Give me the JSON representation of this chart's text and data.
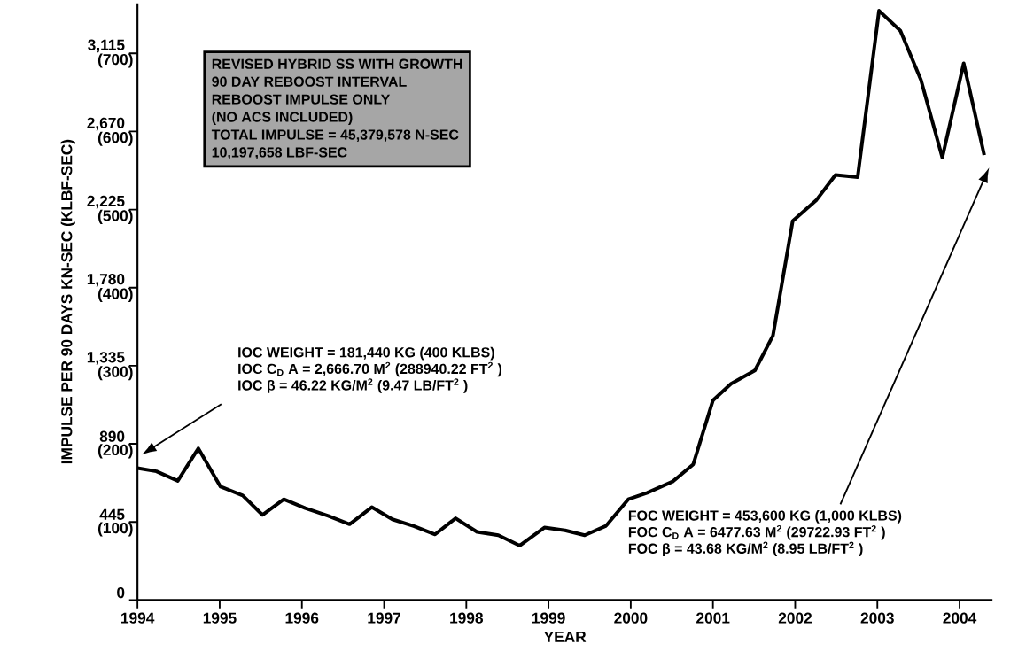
{
  "chart_data": {
    "type": "line",
    "xlabel": "YEAR",
    "ylabel": "IMPULSE PER 90 DAYS KN-SEC (KLBF-SEC)",
    "color": "#000000",
    "line_style": "solid",
    "x": [
      1994.0,
      1994.23,
      1994.49,
      1994.74,
      1995.01,
      1995.28,
      1995.52,
      1995.78,
      1996.04,
      1996.32,
      1996.58,
      1996.85,
      1997.1,
      1997.36,
      1997.62,
      1997.87,
      1998.13,
      1998.39,
      1998.65,
      1998.95,
      1999.2,
      1999.44,
      1999.7,
      1999.97,
      2000.2,
      2000.51,
      2000.76,
      2001.0,
      2001.22,
      2001.51,
      2001.73,
      2001.97,
      2002.26,
      2002.49,
      2002.76,
      2003.02,
      2003.28,
      2003.53,
      2003.79,
      2004.05,
      2004.3
    ],
    "values": [
      751,
      733,
      679,
      864,
      646,
      596,
      485,
      574,
      524,
      480,
      432,
      529,
      460,
      421,
      374,
      466,
      388,
      369,
      310,
      413,
      397,
      369,
      423,
      574,
      611,
      675,
      773,
      1138,
      1232,
      1308,
      1507,
      2160,
      2280,
      2422,
      2410,
      3358,
      3244,
      2964,
      2521,
      3058,
      2535
    ],
    "xlim": [
      1994,
      2004.4
    ],
    "ylim": [
      0,
      3400
    ],
    "xticks": [
      1994,
      1995,
      1996,
      1997,
      1998,
      1999,
      2000,
      2001,
      2002,
      2003,
      2004
    ],
    "yticks": [
      0,
      445,
      890,
      {
        "value": 1335,
        "label": "1,335"
      },
      {
        "value": 1780,
        "label": "1,780"
      },
      {
        "value": 2225,
        "label": "2,225"
      },
      {
        "value": 2670,
        "label": "2,670"
      },
      {
        "value": 3115,
        "label": "3,115"
      }
    ],
    "y2lim": [
      0,
      764.04
    ],
    "y2ticks": [
      {
        "value": 100,
        "label": "(100)"
      },
      {
        "value": 200,
        "label": "(200)"
      },
      {
        "value": 300,
        "label": "(300)"
      },
      {
        "value": 400,
        "label": "(400)"
      },
      {
        "value": 500,
        "label": "(500)"
      },
      {
        "value": 600,
        "label": "(600)"
      },
      {
        "value": 700,
        "label": "(700)"
      }
    ],
    "annotations": [
      "REVISED HYBRID SS WITH GROWTH",
      "90 DAY REBOOST INTERVAL",
      "REBOOST IMPULSE ONLY",
      "(NO ACS INCLUDED)",
      "TOTAL IMPULSE = 45,379,578 N-SEC",
      "10,197,658 LBF-SEC",
      "IOC WEIGHT = 181,440 KG (400 KLBS)",
      "IOC C$_{D}$ A = 2,666.70 M$^{2}$ (288940.22 FT$^{2}$ )",
      "IOC β = 46.22 KG/M$^{2}$ (9.47 LB/FT$^{2}$ )",
      "FOC WEIGHT = 453,600 KG (1,000 KLBS)",
      "FOC C$_{D}$ A = 6477.63 M$^{2}$ (29722.93 FT$^{2}$ )",
      "FOC β = 43.68 KG/M$^{2}$ (8.95 LB/FT$^{2}$ )"
    ]
  }
}
